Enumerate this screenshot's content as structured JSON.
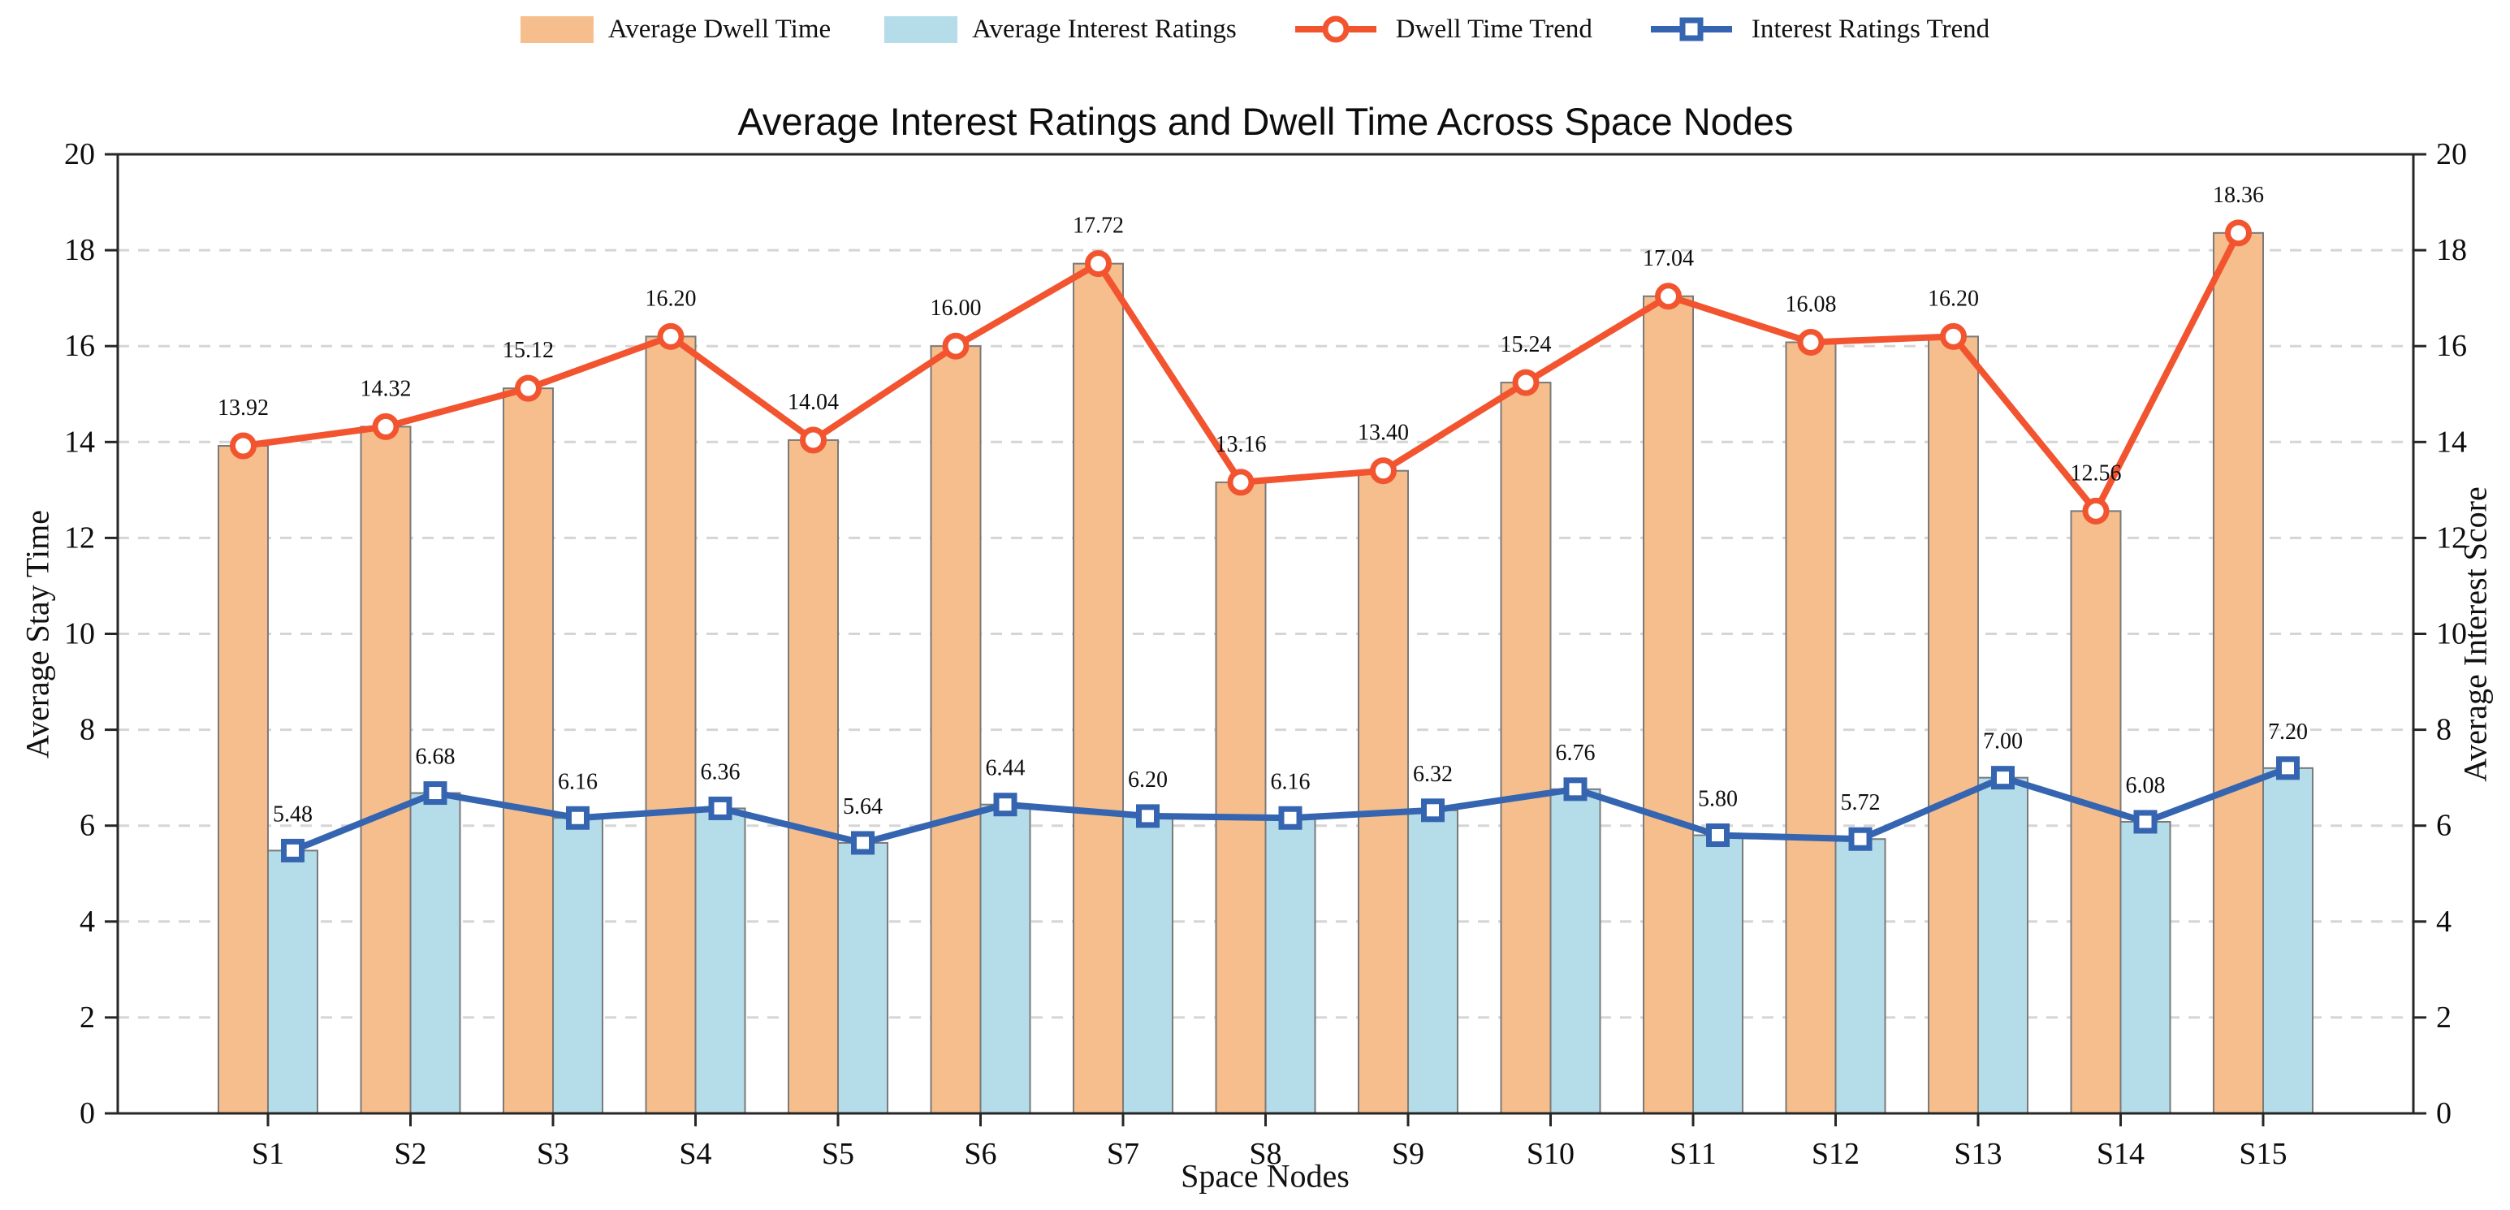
{
  "chart_data": {
    "type": "bar+line",
    "title": "Average Interest Ratings and Dwell Time Across Space Nodes",
    "xlabel": "Space Nodes",
    "ylabel_left": "Average Stay Time",
    "ylabel_right": "Average Interest Score",
    "ylim": [
      0,
      20
    ],
    "yticks": [
      0,
      2,
      4,
      6,
      8,
      10,
      12,
      14,
      16,
      18,
      20
    ],
    "grid": "horizontal-dashed",
    "legend_position": "top-center",
    "categories": [
      "S1",
      "S2",
      "S3",
      "S4",
      "S5",
      "S6",
      "S7",
      "S8",
      "S9",
      "S10",
      "S11",
      "S12",
      "S13",
      "S14",
      "S15"
    ],
    "series": [
      {
        "name": "Average Dwell Time",
        "type": "bar",
        "axis": "left",
        "color": "#F5BE8C",
        "values": [
          13.92,
          14.32,
          15.12,
          16.2,
          14.04,
          16.0,
          17.72,
          13.16,
          13.4,
          15.24,
          17.04,
          16.08,
          16.2,
          12.56,
          18.36
        ]
      },
      {
        "name": "Average Interest Ratings",
        "type": "bar",
        "axis": "right",
        "color": "#B4DCE9",
        "values": [
          5.48,
          6.68,
          6.16,
          6.36,
          5.64,
          6.44,
          6.2,
          6.16,
          6.32,
          6.76,
          5.8,
          5.72,
          7.0,
          6.08,
          7.2
        ]
      },
      {
        "name": "Dwell Time Trend",
        "type": "line",
        "marker": "circle",
        "color": "#F25430",
        "values": [
          13.92,
          14.32,
          15.12,
          16.2,
          14.04,
          16.0,
          17.72,
          13.16,
          13.4,
          15.24,
          17.04,
          16.08,
          16.2,
          12.56,
          18.36
        ]
      },
      {
        "name": "Interest Ratings Trend",
        "type": "line",
        "marker": "square",
        "color": "#3565B0",
        "values": [
          5.48,
          6.68,
          6.16,
          6.36,
          5.64,
          6.44,
          6.2,
          6.16,
          6.32,
          6.76,
          5.8,
          5.72,
          7.0,
          6.08,
          7.2
        ]
      }
    ]
  },
  "legend": {
    "items": [
      {
        "label": "Average Dwell Time",
        "swatch": "bar",
        "color": "#F5BE8C"
      },
      {
        "label": "Average Interest Ratings",
        "swatch": "bar",
        "color": "#B4DCE9"
      },
      {
        "label": "Dwell Time Trend",
        "swatch": "line-circle",
        "color": "#F25430"
      },
      {
        "label": "Interest Ratings Trend",
        "swatch": "line-square",
        "color": "#3565B0"
      }
    ]
  }
}
